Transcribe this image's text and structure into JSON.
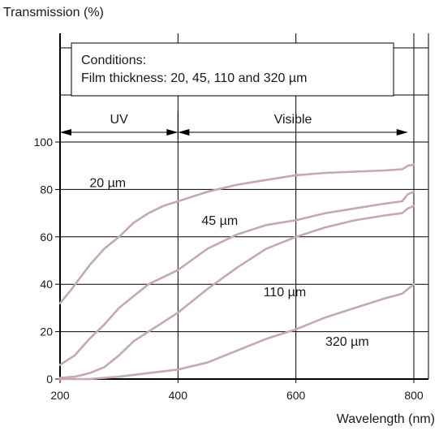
{
  "chart_data": {
    "type": "line",
    "ylabel": "Transmission (%)",
    "xlabel": "Wavelength (nm)",
    "xlim": [
      200,
      800
    ],
    "ylim": [
      0,
      100
    ],
    "y_axis_extends_above_100": true,
    "x_ticks": [
      200,
      400,
      600,
      800
    ],
    "y_ticks": [
      0,
      20,
      40,
      60,
      80,
      100
    ],
    "grid": true,
    "line_color": "#c4a9ad",
    "conditions": {
      "line1": "Conditions:",
      "line2": "Film thickness: 20, 45, 110 and 320 µm"
    },
    "regions": [
      {
        "label": "UV",
        "from": 200,
        "to": 400
      },
      {
        "label": "Visible",
        "from": 400,
        "to": 790
      }
    ],
    "series": [
      {
        "name": "20 µm",
        "label_at": [
          250,
          81
        ],
        "points": [
          [
            200,
            32
          ],
          [
            220,
            38
          ],
          [
            250,
            48
          ],
          [
            275,
            55
          ],
          [
            300,
            60
          ],
          [
            325,
            66
          ],
          [
            350,
            70
          ],
          [
            375,
            73
          ],
          [
            400,
            75
          ],
          [
            450,
            79
          ],
          [
            500,
            82
          ],
          [
            550,
            84
          ],
          [
            600,
            86
          ],
          [
            650,
            87
          ],
          [
            700,
            87.5
          ],
          [
            750,
            88
          ],
          [
            780,
            88.5
          ],
          [
            790,
            90
          ],
          [
            800,
            90.5
          ]
        ]
      },
      {
        "name": "45 µm",
        "label_at": [
          440,
          65
        ],
        "points": [
          [
            200,
            6
          ],
          [
            225,
            10
          ],
          [
            250,
            17
          ],
          [
            275,
            23
          ],
          [
            300,
            30
          ],
          [
            325,
            35
          ],
          [
            350,
            40
          ],
          [
            375,
            43
          ],
          [
            400,
            46
          ],
          [
            450,
            55
          ],
          [
            500,
            61
          ],
          [
            550,
            65
          ],
          [
            600,
            67
          ],
          [
            650,
            70
          ],
          [
            700,
            72
          ],
          [
            750,
            74
          ],
          [
            780,
            75
          ],
          [
            790,
            78
          ],
          [
            800,
            79
          ]
        ]
      },
      {
        "name": "110 µm",
        "label_at": [
          545,
          35
        ],
        "points": [
          [
            200,
            0.5
          ],
          [
            225,
            1
          ],
          [
            250,
            2.5
          ],
          [
            275,
            5
          ],
          [
            300,
            10
          ],
          [
            325,
            16
          ],
          [
            350,
            20
          ],
          [
            375,
            24
          ],
          [
            400,
            28
          ],
          [
            450,
            38
          ],
          [
            500,
            47
          ],
          [
            550,
            55
          ],
          [
            600,
            60
          ],
          [
            650,
            64
          ],
          [
            700,
            67
          ],
          [
            750,
            69
          ],
          [
            780,
            70
          ],
          [
            790,
            72
          ],
          [
            800,
            73
          ]
        ]
      },
      {
        "name": "320 µm",
        "label_at": [
          650,
          14
        ],
        "points": [
          [
            200,
            0
          ],
          [
            250,
            0
          ],
          [
            300,
            1
          ],
          [
            350,
            2.5
          ],
          [
            400,
            4
          ],
          [
            450,
            7
          ],
          [
            500,
            12
          ],
          [
            550,
            17
          ],
          [
            600,
            21
          ],
          [
            650,
            26
          ],
          [
            700,
            30
          ],
          [
            750,
            34
          ],
          [
            780,
            36
          ],
          [
            800,
            40
          ]
        ]
      }
    ]
  }
}
